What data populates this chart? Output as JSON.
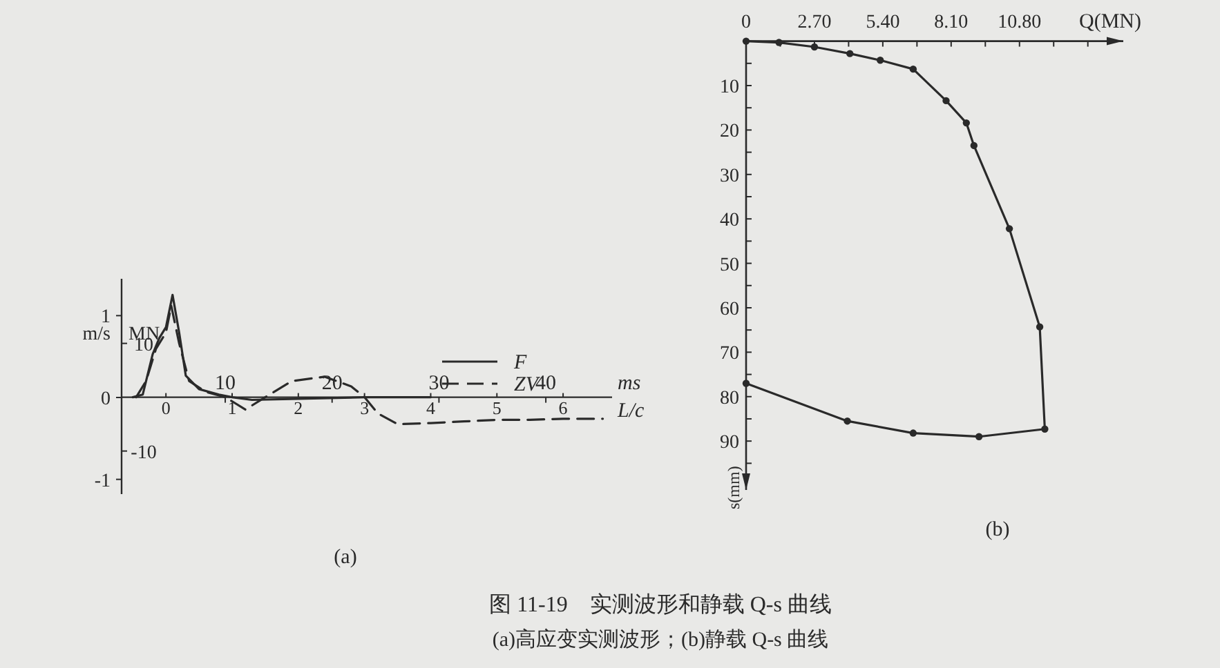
{
  "chart_data": [
    {
      "type": "line",
      "xlabel": "L/c",
      "x2label": "ms",
      "ylabel": "MN",
      "y2label": "m/s",
      "xlim": [
        -0.67,
        6.74
      ],
      "xticks": [
        0,
        1,
        2,
        3,
        4,
        5,
        6
      ],
      "x2lim": [
        0.3,
        46.2
      ],
      "x2ticks": [
        10,
        20,
        30,
        40
      ],
      "ylim": [
        -18,
        22
      ],
      "yticks": [
        10,
        -10
      ],
      "y2lim": [
        -1.18,
        1.45
      ],
      "y2ticks": [
        1,
        0,
        -1
      ],
      "legend": "top right",
      "grid": false,
      "marker": "none",
      "series": [
        {
          "name": "F",
          "color": "#2a2a2a",
          "line_style": "solid",
          "x": [
            -0.5,
            -0.35,
            -0.2,
            -0.1,
            0,
            0.1,
            0.2,
            0.3,
            0.5,
            0.8,
            1.0,
            1.3,
            2,
            3,
            4
          ],
          "values": [
            0,
            0.5,
            8,
            11,
            13,
            19,
            12,
            4,
            1.5,
            0.5,
            0,
            -0.5,
            -0.3,
            0,
            0
          ]
        },
        {
          "name": "ZV",
          "color": "#2a2a2a",
          "line_style": "dashed",
          "x": [
            -0.45,
            -0.3,
            -0.15,
            0,
            0.08,
            0.2,
            0.35,
            0.6,
            0.9,
            1.2,
            1.5,
            1.9,
            2.4,
            2.8,
            3.0,
            3.2,
            3.5,
            4,
            4.5,
            5,
            5.5,
            6,
            6.6
          ],
          "values": [
            0,
            3,
            9,
            12,
            17,
            10,
            3,
            1,
            0,
            -2.3,
            0,
            3,
            3.8,
            2,
            0,
            -3,
            -5,
            -4.8,
            -4.5,
            -4.2,
            -4.2,
            -4,
            -4
          ]
        }
      ],
      "annotations": [
        "(a)"
      ]
    },
    {
      "type": "line",
      "xlabel": "Q(MN)",
      "ylabel": "s(mm)",
      "xlim": [
        0,
        14.9
      ],
      "xticks": [
        0,
        {
          "value": 1.35,
          "label": null
        },
        {
          "value": 2.7,
          "label": "2.70"
        },
        {
          "value": 4.05,
          "label": null
        },
        {
          "value": 5.4,
          "label": "5.40"
        },
        {
          "value": 6.75,
          "label": null
        },
        {
          "value": 8.1,
          "label": "8.10"
        },
        {
          "value": 9.45,
          "label": null
        },
        {
          "value": 10.8,
          "label": "10.80"
        },
        {
          "value": 12.15,
          "label": null
        },
        {
          "value": 13.5,
          "label": null
        }
      ],
      "ylim": [
        101,
        0
      ],
      "yticks": [
        {
          "value": 5,
          "label": null
        },
        10,
        {
          "value": 15,
          "label": null
        },
        20,
        {
          "value": 25,
          "label": null
        },
        30,
        {
          "value": 35,
          "label": null
        },
        40,
        {
          "value": 45,
          "label": null
        },
        50,
        {
          "value": 55,
          "label": null
        },
        60,
        {
          "value": 65,
          "label": null
        },
        70,
        {
          "value": 75,
          "label": null
        },
        80,
        {
          "value": 85,
          "label": null
        },
        90,
        {
          "value": 95,
          "label": null
        }
      ],
      "grid": false,
      "marker": "circle",
      "series": [
        {
          "color": "#2a2a2a",
          "x": [
            0,
            1.3,
            2.7,
            4.1,
            5.3,
            6.6,
            7.9,
            8.7,
            9.0,
            10.4,
            11.6,
            11.8,
            9.2,
            6.6,
            4.0,
            0
          ],
          "values": [
            0,
            0.3,
            1.3,
            2.8,
            4.3,
            6.3,
            13.4,
            18.4,
            23.5,
            42.2,
            64.3,
            87.3,
            89.0,
            88.2,
            85.5,
            77.0
          ]
        }
      ],
      "annotations": [
        "(b)"
      ]
    },
    {
      "type": "other",
      "title": "图 11-19　实测波形和静载 Q-s 曲线",
      "subtitle": "(a)高应变实测波形；(b)静载 Q-s 曲线"
    }
  ]
}
